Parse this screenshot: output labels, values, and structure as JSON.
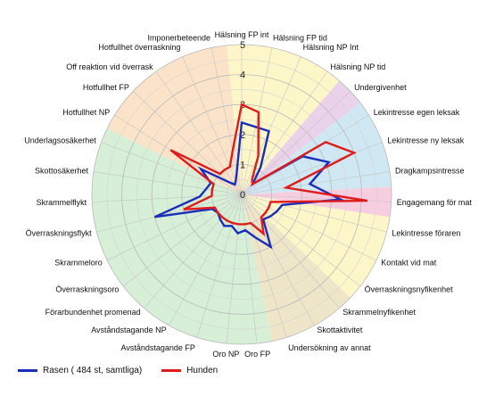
{
  "chart_data": {
    "type": "radar",
    "rlim": [
      0,
      5
    ],
    "r_ticks": [
      "0",
      "1",
      "2",
      "3",
      "4",
      "5"
    ],
    "categories": [
      "Hälsning FP int",
      "Hälsning FP tid",
      "Hälsning NP Int",
      "Hälsning NP tid",
      "Undergivenhet",
      "Lekintresse egen leksak",
      "Lekintresse ny leksak",
      "Dragkampsintresse",
      "Engagemang för mat",
      "Lekintresse föraren",
      "Kontakt vid mat",
      "Överraskningsnyfikenhet",
      "Skrammelnyfikenhet",
      "Skottaktivitet",
      "Undersökning av annat",
      "Oro FP",
      "Oro NP",
      "Avståndstagande FP",
      "Avståndstagande NP",
      "Förarbundenhet promenad",
      "Överraskningsoro",
      "Skrammeloro",
      "Överraskningsflykt",
      "Skrammelflykt",
      "Skottosäkerhet",
      "Underlagsosäkerhet",
      "Hotfullhet NP",
      "Hotfullhet FP",
      "Off reaktion vid överrask",
      "Hotfullhet överraskning",
      "Imponerbeteende"
    ],
    "sector_colors": [
      {
        "from": 0,
        "to": 3,
        "color": "#fdf6c9"
      },
      {
        "from": 4,
        "to": 4,
        "color": "#ead2ea"
      },
      {
        "from": 5,
        "to": 7,
        "color": "#cfe8f3"
      },
      {
        "from": 8,
        "to": 8,
        "color": "#f7cde0"
      },
      {
        "from": 9,
        "to": 11,
        "color": "#fdf6c9"
      },
      {
        "from": 12,
        "to": 14,
        "color": "#efe6c9"
      },
      {
        "from": 15,
        "to": 25,
        "color": "#d6efd6"
      },
      {
        "from": 26,
        "to": 30,
        "color": "#fbe3c9"
      }
    ],
    "series": [
      {
        "name": "Rasen ( 484 st, samtliga)",
        "color": "#1a2fb8",
        "values": [
          2.4,
          2.3,
          2.3,
          1.1,
          0.5,
          2.4,
          3.1,
          2.3,
          3.3,
          1.4,
          1.3,
          1.2,
          1.1,
          2.0,
          1.5,
          1.2,
          1.3,
          1.1,
          1.2,
          1.1,
          1.0,
          1.1,
          3.0,
          1.4,
          1.2,
          1.1,
          1.6,
          0.6,
          0.4,
          0.5,
          0.8
        ]
      },
      {
        "name": "Hunden",
        "color": "#e01b1b",
        "values": [
          3.0,
          2.8,
          1.4,
          0.6,
          0.5,
          3.3,
          4.0,
          1.5,
          4.2,
          1.0,
          1.0,
          1.0,
          1.0,
          1.5,
          1.0,
          1.0,
          1.0,
          1.0,
          1.0,
          1.0,
          1.0,
          1.0,
          2.0,
          1.0,
          1.0,
          1.0,
          2.8,
          1.0,
          1.0,
          1.0,
          1.5
        ]
      }
    ]
  }
}
